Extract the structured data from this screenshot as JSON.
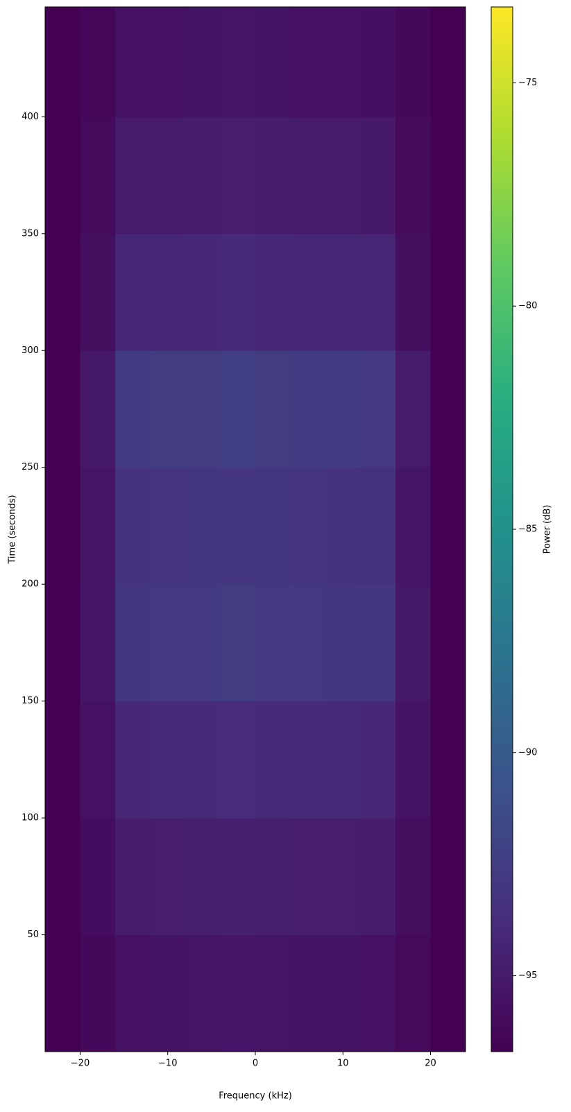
{
  "chart_data": {
    "type": "heatmap",
    "xlabel": "Frequency (kHz)",
    "ylabel": "Time (seconds)",
    "x_edges": [
      -24,
      -20,
      -16,
      -12,
      -8,
      -4,
      0,
      4,
      8,
      12,
      16,
      20,
      24
    ],
    "y_edges": [
      0,
      50,
      100,
      150,
      200,
      250,
      300,
      350,
      400,
      447
    ],
    "z": [
      [
        -96.7,
        -96.2,
        -95.6,
        -95.5,
        -95.4,
        -95.3,
        -95.4,
        -95.5,
        -95.5,
        -95.6,
        -96.1,
        -96.7
      ],
      [
        -96.7,
        -95.9,
        -94.9,
        -94.8,
        -94.7,
        -94.6,
        -94.7,
        -94.8,
        -94.8,
        -94.9,
        -95.8,
        -96.7
      ],
      [
        -96.7,
        -95.6,
        -94.1,
        -94.0,
        -93.9,
        -93.8,
        -93.9,
        -94.0,
        -94.0,
        -94.1,
        -95.5,
        -96.7
      ],
      [
        -96.7,
        -95.3,
        -92.9,
        -92.8,
        -92.8,
        -92.6,
        -92.8,
        -92.8,
        -92.9,
        -93.0,
        -95.2,
        -96.7
      ],
      [
        -96.7,
        -95.4,
        -93.3,
        -93.2,
        -93.1,
        -93.0,
        -93.1,
        -93.2,
        -93.3,
        -93.4,
        -95.3,
        -96.7
      ],
      [
        -96.7,
        -95.2,
        -92.7,
        -92.6,
        -92.6,
        -92.4,
        -92.6,
        -92.7,
        -92.7,
        -92.8,
        -95.0,
        -96.7
      ],
      [
        -96.7,
        -95.8,
        -94.2,
        -94.2,
        -94.1,
        -94.0,
        -94.1,
        -94.2,
        -94.2,
        -94.3,
        -95.8,
        -96.7
      ],
      [
        -96.7,
        -96.1,
        -95.0,
        -95.0,
        -94.9,
        -94.8,
        -94.9,
        -95.0,
        -95.0,
        -95.1,
        -96.0,
        -96.7
      ],
      [
        -96.7,
        -96.3,
        -95.6,
        -95.6,
        -95.5,
        -95.4,
        -95.5,
        -95.6,
        -95.6,
        -95.7,
        -96.2,
        -96.7
      ]
    ],
    "xlim": [
      -24,
      24
    ],
    "ylim": [
      0,
      447
    ],
    "xticks": [
      {
        "value": -20,
        "label": "−20"
      },
      {
        "value": -10,
        "label": "−10"
      },
      0,
      10,
      20
    ],
    "yticks": [
      50,
      100,
      150,
      200,
      250,
      300,
      350,
      400
    ],
    "colormap": "viridis",
    "colorbar": {
      "label": "Power (dB)",
      "lim": [
        -96.7,
        -73.3
      ],
      "ticks": [
        {
          "value": -95,
          "label": "−95"
        },
        {
          "value": -90,
          "label": "−90"
        },
        {
          "value": -85,
          "label": "−85"
        },
        {
          "value": -80,
          "label": "−80"
        },
        {
          "value": -75,
          "label": "−75"
        }
      ]
    }
  }
}
